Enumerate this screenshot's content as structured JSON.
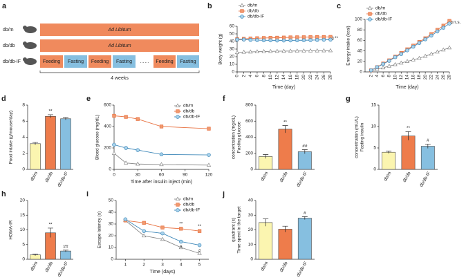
{
  "panel_labels": [
    "a",
    "b",
    "c",
    "d",
    "e",
    "f",
    "g",
    "h",
    "i",
    "j"
  ],
  "schematic": {
    "groups": [
      "db/m",
      "db/db",
      "db/db-IF"
    ],
    "ad_libitum": "Ad Libitum",
    "feeding": "Feeding",
    "fasting": "Fasting",
    "ellipsis": "……",
    "duration": "4 weeks"
  },
  "chart_data": [
    {
      "type": "line",
      "ylabel": "Body weight (g)",
      "xlabel": "Time (day)",
      "x": [
        0,
        2,
        4,
        6,
        8,
        10,
        12,
        14,
        16,
        18,
        20,
        22,
        24,
        26,
        28
      ],
      "xlim": [
        0,
        28
      ],
      "xticks": [
        0,
        2,
        4,
        6,
        8,
        10,
        12,
        14,
        16,
        18,
        20,
        22,
        24,
        26,
        28
      ],
      "ylim": [
        0,
        60
      ],
      "yticks": [
        0,
        10,
        20,
        30,
        40,
        50,
        60
      ],
      "legend": "upper left",
      "note": "**",
      "series": [
        {
          "name": "db/m",
          "color": "#888888",
          "marker": "triangle",
          "marker_fill": "#ffffff",
          "values": [
            25.5,
            26,
            26.3,
            26.6,
            26.8,
            27,
            27.2,
            27.3,
            27.4,
            27.5,
            27.6,
            27.7,
            27.8,
            27.9,
            28
          ]
        },
        {
          "name": "db/db",
          "color": "#e8703f",
          "marker": "square",
          "marker_fill": "#f09a70",
          "values": [
            43,
            43.5,
            44,
            44.3,
            44.6,
            44.8,
            45,
            45.2,
            45.4,
            45.5,
            45.6,
            45.7,
            45.8,
            45.9,
            46
          ]
        },
        {
          "name": "db/db-IF",
          "color": "#3d87b8",
          "marker": "circle",
          "marker_fill": "#a9d3ec",
          "values": [
            42.5,
            42.5,
            42,
            41.8,
            41.5,
            41.5,
            41.3,
            41.3,
            41.4,
            41.5,
            41.6,
            41.8,
            42,
            42.2,
            42.5
          ]
        }
      ]
    },
    {
      "type": "line",
      "ylabel": "Energy intake (kcal)",
      "xlabel": "Time (day)",
      "x": [
        2,
        4,
        6,
        8,
        10,
        12,
        14,
        16,
        18,
        20,
        22,
        24,
        26,
        28
      ],
      "xlim": [
        0,
        28
      ],
      "xticks": [
        2,
        4,
        6,
        8,
        10,
        12,
        14,
        16,
        18,
        20,
        22,
        24,
        26,
        28
      ],
      "ylim": [
        0,
        100
      ],
      "yticks": [
        0,
        20,
        40,
        60,
        80,
        100
      ],
      "legend": "upper left",
      "note": "n.s.",
      "series": [
        {
          "name": "db/m",
          "color": "#888888",
          "marker": "triangle",
          "marker_fill": "#ffffff",
          "values": [
            2,
            5,
            8,
            11,
            14,
            17,
            20,
            23,
            26,
            30,
            34,
            38,
            42,
            46
          ]
        },
        {
          "name": "db/db",
          "color": "#e8703f",
          "marker": "square",
          "marker_fill": "#f09a70",
          "values": [
            3,
            9,
            16,
            22,
            29,
            36,
            43,
            50,
            57,
            64,
            72,
            80,
            88,
            97
          ]
        },
        {
          "name": "db/db-IF",
          "color": "#3d87b8",
          "marker": "circle",
          "marker_fill": "#a9d3ec",
          "values": [
            3,
            9,
            15,
            21,
            28,
            34,
            41,
            48,
            55,
            62,
            69,
            77,
            84,
            92
          ]
        }
      ]
    },
    {
      "type": "bar",
      "ylabel": "Food intake (g/mouse/day)",
      "categories": [
        "db/m",
        "db/db",
        "db/db-IF"
      ],
      "values": [
        3.2,
        6.6,
        6.3
      ],
      "errors": [
        0.15,
        0.2,
        0.15
      ],
      "annotations": [
        null,
        "**",
        null
      ],
      "colors": [
        "#fbf5b0",
        "#ee7c4b",
        "#86bfe0"
      ],
      "ylim": [
        0,
        8
      ],
      "yticks": [
        0,
        2,
        4,
        6,
        8
      ]
    },
    {
      "type": "line",
      "ylabel": "Blood glucose (mg/dL)",
      "xlabel": "Time after insulin inject (min)",
      "x": [
        0,
        15,
        30,
        60,
        120
      ],
      "xlim": [
        0,
        120
      ],
      "xticks": [
        0,
        30,
        60,
        90,
        120
      ],
      "ylim": [
        0,
        600
      ],
      "yticks": [
        0,
        200,
        400,
        600
      ],
      "legend": "upper right",
      "series": [
        {
          "name": "db/m",
          "color": "#888888",
          "marker": "triangle",
          "marker_fill": "#ffffff",
          "values": [
            150,
            60,
            50,
            45,
            40
          ]
        },
        {
          "name": "db/db",
          "color": "#e8703f",
          "marker": "square",
          "marker_fill": "#f09a70",
          "values": [
            500,
            490,
            470,
            400,
            380
          ]
        },
        {
          "name": "db/db-IF",
          "color": "#3d87b8",
          "marker": "circle",
          "marker_fill": "#a9d3ec",
          "values": [
            230,
            200,
            180,
            140,
            135
          ]
        }
      ]
    },
    {
      "type": "bar",
      "ylabel": [
        "Fasting glucose",
        "concentration (mg/dL)"
      ],
      "categories": [
        "db/m",
        "db/db",
        "db/db-IF"
      ],
      "values": [
        160,
        500,
        220
      ],
      "errors": [
        25,
        45,
        25
      ],
      "annotations": [
        null,
        "**",
        "##"
      ],
      "colors": [
        "#fbf5b0",
        "#ee7c4b",
        "#86bfe0"
      ],
      "ylim": [
        0,
        800
      ],
      "yticks": [
        0,
        200,
        400,
        600,
        800
      ]
    },
    {
      "type": "bar",
      "ylabel": [
        "Fasting insulin",
        "concentration (mU/L)"
      ],
      "categories": [
        "db/m",
        "db/db",
        "db/db-IF"
      ],
      "values": [
        4,
        7.8,
        5.4
      ],
      "errors": [
        0.3,
        1,
        0.5
      ],
      "annotations": [
        null,
        "**",
        "#"
      ],
      "colors": [
        "#fbf5b0",
        "#ee7c4b",
        "#86bfe0"
      ],
      "ylim": [
        0,
        15
      ],
      "yticks": [
        0,
        5,
        10,
        15
      ]
    },
    {
      "type": "bar",
      "ylabel": "HOMA-IR",
      "categories": [
        "db/m",
        "db/db",
        "db/db-IF"
      ],
      "values": [
        1.5,
        9,
        2.8
      ],
      "errors": [
        0.3,
        1.6,
        0.3
      ],
      "annotations": [
        null,
        "**",
        "##"
      ],
      "colors": [
        "#fbf5b0",
        "#ee7c4b",
        "#86bfe0"
      ],
      "ylim": [
        0,
        20
      ],
      "yticks": [
        0,
        5,
        10,
        15,
        20
      ]
    },
    {
      "type": "line",
      "ylabel": "Escape latency (s)",
      "xlabel": "Time (days)",
      "x": [
        1,
        2,
        3,
        4,
        5
      ],
      "xlim": [
        0.5,
        5.5
      ],
      "xticks": [
        1,
        2,
        3,
        4,
        5
      ],
      "ylim": [
        0,
        50
      ],
      "yticks": [
        0,
        10,
        20,
        30,
        40,
        50
      ],
      "legend": "upper right",
      "series": [
        {
          "name": "db/m",
          "color": "#888888",
          "marker": "triangle",
          "marker_fill": "#ffffff",
          "values": [
            33,
            20,
            17,
            10,
            5
          ]
        },
        {
          "name": "db/db",
          "color": "#e8703f",
          "marker": "square",
          "marker_fill": "#f09a70",
          "values": [
            33,
            31,
            27,
            26,
            24
          ],
          "annotations": [
            null,
            null,
            null,
            "**",
            "**"
          ]
        },
        {
          "name": "db/db-IF",
          "color": "#3d87b8",
          "marker": "circle",
          "marker_fill": "#a9d3ec",
          "values": [
            34,
            24,
            22,
            15,
            12
          ],
          "annotations": [
            null,
            null,
            null,
            "#",
            "#"
          ]
        }
      ]
    },
    {
      "type": "bar",
      "ylabel": [
        "Time spent in the target",
        "quadrant (s)"
      ],
      "categories": [
        "db/m",
        "db/db",
        "db/db-IF"
      ],
      "values": [
        25,
        20.5,
        28
      ],
      "errors": [
        2.5,
        2,
        1
      ],
      "annotations": [
        null,
        null,
        "#"
      ],
      "colors": [
        "#fbf5b0",
        "#ee7c4b",
        "#86bfe0"
      ],
      "ylim": [
        0,
        40
      ],
      "yticks": [
        0,
        10,
        20,
        30,
        40
      ]
    }
  ]
}
